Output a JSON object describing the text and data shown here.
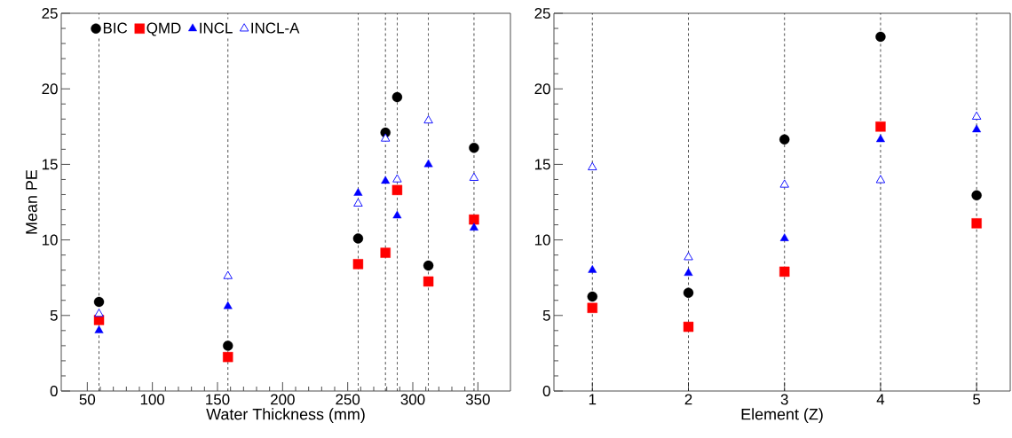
{
  "chart_data": [
    {
      "type": "scatter",
      "xlabel": "Water Thickness (mm)",
      "ylabel": "Mean PE",
      "x": [
        59,
        158,
        258,
        279,
        288,
        312,
        347
      ],
      "series": [
        {
          "name": "BIC",
          "color": "#000000",
          "marker": "circle",
          "values": [
            5.9,
            3.0,
            10.1,
            17.1,
            19.45,
            8.3,
            16.1
          ]
        },
        {
          "name": "QMD",
          "color": "#ff0000",
          "marker": "square",
          "values": [
            4.7,
            2.25,
            8.4,
            9.15,
            13.3,
            7.25,
            11.35
          ]
        },
        {
          "name": "INCL",
          "color": "#0000ff",
          "marker": "triangle",
          "values": [
            4.0,
            5.6,
            13.1,
            13.9,
            11.6,
            15.0,
            10.8
          ]
        },
        {
          "name": "INCL-A",
          "color": "#0000ff",
          "marker": "triangle-open",
          "values": [
            5.1,
            7.6,
            12.4,
            16.7,
            14.0,
            17.9,
            14.1
          ]
        }
      ],
      "xlim": [
        30,
        375
      ],
      "ylim": [
        0,
        25
      ],
      "xticks": [
        50,
        100,
        150,
        200,
        250,
        300,
        350
      ],
      "yticks": [
        0,
        5,
        10,
        15,
        20,
        25
      ],
      "legend": "top left",
      "ref_lines": [
        {
          "axis": "x",
          "value": 59,
          "line_style": "dashed"
        },
        {
          "axis": "x",
          "value": 158,
          "line_style": "dashed"
        },
        {
          "axis": "x",
          "value": 258,
          "line_style": "dashed"
        },
        {
          "axis": "x",
          "value": 279,
          "line_style": "dashed"
        },
        {
          "axis": "x",
          "value": 288,
          "line_style": "dashed"
        },
        {
          "axis": "x",
          "value": 312,
          "line_style": "dashed"
        },
        {
          "axis": "x",
          "value": 347,
          "line_style": "dashed"
        }
      ]
    },
    {
      "type": "scatter",
      "xlabel": "Element (Z)",
      "x": [
        1,
        2,
        3,
        4,
        5
      ],
      "series": [
        {
          "color": "#000000",
          "marker": "circle",
          "values": [
            6.25,
            6.5,
            16.65,
            23.45,
            12.95
          ]
        },
        {
          "color": "#ff0000",
          "marker": "square",
          "values": [
            5.5,
            4.25,
            7.9,
            17.5,
            11.1
          ]
        },
        {
          "color": "#0000ff",
          "marker": "triangle",
          "values": [
            8.0,
            7.8,
            10.1,
            16.65,
            17.3
          ]
        },
        {
          "color": "#0000ff",
          "marker": "triangle-open",
          "values": [
            14.8,
            8.85,
            13.65,
            13.95,
            18.15
          ]
        }
      ],
      "xlim": [
        0.6,
        5.35
      ],
      "ylim": [
        0,
        25
      ],
      "xticks": [
        1,
        2,
        3,
        4,
        5
      ],
      "yticks": [
        0,
        5,
        10,
        15,
        20,
        25
      ],
      "ref_lines": [
        {
          "axis": "x",
          "value": 1,
          "line_style": "dashed"
        },
        {
          "axis": "x",
          "value": 2,
          "line_style": "dashed"
        },
        {
          "axis": "x",
          "value": 3,
          "line_style": "dashed"
        },
        {
          "axis": "x",
          "value": 4,
          "line_style": "dashed"
        },
        {
          "axis": "x",
          "value": 5,
          "line_style": "dashed"
        }
      ]
    }
  ]
}
